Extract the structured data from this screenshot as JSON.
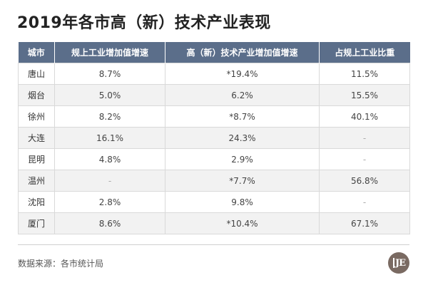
{
  "title": "2019年各市高（新）技术产业表现",
  "table": {
    "headers": [
      "城市",
      "规上工业增加值增速",
      "高（新）技术产业增加值增速",
      "占规上工业比重"
    ],
    "rows": [
      [
        "唐山",
        "8.7%",
        "*19.4%",
        "11.5%"
      ],
      [
        "烟台",
        "5.0%",
        "6.2%",
        "15.5%"
      ],
      [
        "徐州",
        "8.2%",
        "*8.7%",
        "40.1%"
      ],
      [
        "大连",
        "16.1%",
        "24.3%",
        "-"
      ],
      [
        "昆明",
        "4.8%",
        "2.9%",
        "-"
      ],
      [
        "温州",
        "-",
        "*7.7%",
        "56.8%"
      ],
      [
        "沈阳",
        "2.8%",
        "9.8%",
        "-"
      ],
      [
        "厦门",
        "8.6%",
        "*10.4%",
        "67.1%"
      ]
    ]
  },
  "source": "数据来源：各市统计局",
  "logo": {
    "text": "JE",
    "color": "#7a6a62"
  },
  "colors": {
    "header_bg": "#5b6e8a",
    "alt_row_bg": "#f2f2f2"
  }
}
